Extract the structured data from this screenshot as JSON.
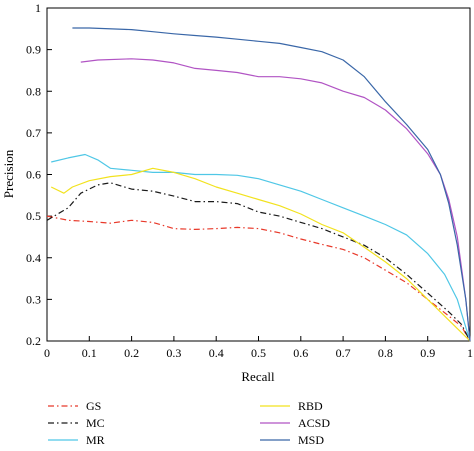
{
  "chart_data": {
    "type": "line",
    "title": "",
    "xlabel": "Recall",
    "ylabel": "Precision",
    "xlim": [
      0,
      1
    ],
    "ylim": [
      0.2,
      1
    ],
    "x_ticks": [
      "0",
      "0.1",
      "0.2",
      "0.3",
      "0.4",
      "0.5",
      "0.6",
      "0.7",
      "0.8",
      "0.9",
      "1"
    ],
    "y_ticks": [
      "0.2",
      "0.3",
      "0.4",
      "0.5",
      "0.6",
      "0.7",
      "0.8",
      "0.9",
      "1"
    ],
    "grid": false,
    "legend_position": "bottom",
    "series": [
      {
        "name": "GS",
        "color": "#e8392a",
        "dash": "dash-dot",
        "points": [
          [
            0.0,
            0.5
          ],
          [
            0.05,
            0.49
          ],
          [
            0.1,
            0.487
          ],
          [
            0.15,
            0.483
          ],
          [
            0.2,
            0.49
          ],
          [
            0.25,
            0.485
          ],
          [
            0.3,
            0.47
          ],
          [
            0.35,
            0.468
          ],
          [
            0.4,
            0.47
          ],
          [
            0.45,
            0.473
          ],
          [
            0.5,
            0.47
          ],
          [
            0.55,
            0.46
          ],
          [
            0.6,
            0.445
          ],
          [
            0.65,
            0.432
          ],
          [
            0.7,
            0.42
          ],
          [
            0.75,
            0.4
          ],
          [
            0.8,
            0.37
          ],
          [
            0.85,
            0.34
          ],
          [
            0.9,
            0.3
          ],
          [
            0.95,
            0.26
          ],
          [
            0.98,
            0.235
          ],
          [
            1.0,
            0.2
          ]
        ]
      },
      {
        "name": "MC",
        "color": "#1a1a1a",
        "dash": "dash-dot",
        "points": [
          [
            0.0,
            0.49
          ],
          [
            0.05,
            0.52
          ],
          [
            0.08,
            0.555
          ],
          [
            0.12,
            0.575
          ],
          [
            0.15,
            0.58
          ],
          [
            0.2,
            0.565
          ],
          [
            0.25,
            0.56
          ],
          [
            0.3,
            0.548
          ],
          [
            0.35,
            0.535
          ],
          [
            0.4,
            0.535
          ],
          [
            0.45,
            0.53
          ],
          [
            0.5,
            0.51
          ],
          [
            0.55,
            0.5
          ],
          [
            0.6,
            0.485
          ],
          [
            0.65,
            0.47
          ],
          [
            0.7,
            0.45
          ],
          [
            0.75,
            0.43
          ],
          [
            0.8,
            0.4
          ],
          [
            0.85,
            0.36
          ],
          [
            0.9,
            0.315
          ],
          [
            0.95,
            0.27
          ],
          [
            0.98,
            0.24
          ],
          [
            1.0,
            0.2
          ]
        ]
      },
      {
        "name": "MR",
        "color": "#4fc7e6",
        "dash": "solid",
        "points": [
          [
            0.01,
            0.63
          ],
          [
            0.05,
            0.64
          ],
          [
            0.09,
            0.648
          ],
          [
            0.12,
            0.635
          ],
          [
            0.15,
            0.615
          ],
          [
            0.2,
            0.61
          ],
          [
            0.25,
            0.605
          ],
          [
            0.3,
            0.605
          ],
          [
            0.35,
            0.6
          ],
          [
            0.4,
            0.6
          ],
          [
            0.45,
            0.598
          ],
          [
            0.5,
            0.59
          ],
          [
            0.55,
            0.575
          ],
          [
            0.6,
            0.56
          ],
          [
            0.65,
            0.54
          ],
          [
            0.7,
            0.52
          ],
          [
            0.75,
            0.5
          ],
          [
            0.8,
            0.48
          ],
          [
            0.85,
            0.455
          ],
          [
            0.9,
            0.41
          ],
          [
            0.94,
            0.36
          ],
          [
            0.97,
            0.3
          ],
          [
            1.0,
            0.2
          ]
        ]
      },
      {
        "name": "RBD",
        "color": "#f2e21e",
        "dash": "solid",
        "points": [
          [
            0.01,
            0.57
          ],
          [
            0.04,
            0.555
          ],
          [
            0.06,
            0.57
          ],
          [
            0.1,
            0.585
          ],
          [
            0.15,
            0.595
          ],
          [
            0.2,
            0.6
          ],
          [
            0.25,
            0.615
          ],
          [
            0.3,
            0.605
          ],
          [
            0.35,
            0.59
          ],
          [
            0.4,
            0.57
          ],
          [
            0.45,
            0.555
          ],
          [
            0.5,
            0.54
          ],
          [
            0.55,
            0.525
          ],
          [
            0.6,
            0.505
          ],
          [
            0.65,
            0.48
          ],
          [
            0.7,
            0.46
          ],
          [
            0.75,
            0.425
          ],
          [
            0.8,
            0.39
          ],
          [
            0.85,
            0.35
          ],
          [
            0.9,
            0.3
          ],
          [
            0.95,
            0.25
          ],
          [
            1.0,
            0.2
          ]
        ]
      },
      {
        "name": "ACSD",
        "color": "#b154c4",
        "dash": "solid",
        "points": [
          [
            0.08,
            0.87
          ],
          [
            0.12,
            0.875
          ],
          [
            0.2,
            0.878
          ],
          [
            0.25,
            0.875
          ],
          [
            0.3,
            0.868
          ],
          [
            0.35,
            0.855
          ],
          [
            0.4,
            0.85
          ],
          [
            0.45,
            0.845
          ],
          [
            0.5,
            0.835
          ],
          [
            0.55,
            0.835
          ],
          [
            0.6,
            0.83
          ],
          [
            0.65,
            0.82
          ],
          [
            0.7,
            0.8
          ],
          [
            0.75,
            0.785
          ],
          [
            0.8,
            0.755
          ],
          [
            0.85,
            0.71
          ],
          [
            0.9,
            0.65
          ],
          [
            0.93,
            0.6
          ],
          [
            0.95,
            0.54
          ],
          [
            0.97,
            0.45
          ],
          [
            0.99,
            0.3
          ],
          [
            1.0,
            0.2
          ]
        ]
      },
      {
        "name": "MSD",
        "color": "#3a67a8",
        "dash": "solid",
        "points": [
          [
            0.06,
            0.952
          ],
          [
            0.1,
            0.952
          ],
          [
            0.2,
            0.948
          ],
          [
            0.25,
            0.943
          ],
          [
            0.3,
            0.938
          ],
          [
            0.35,
            0.934
          ],
          [
            0.4,
            0.93
          ],
          [
            0.45,
            0.925
          ],
          [
            0.5,
            0.92
          ],
          [
            0.55,
            0.915
          ],
          [
            0.6,
            0.905
          ],
          [
            0.65,
            0.895
          ],
          [
            0.7,
            0.875
          ],
          [
            0.75,
            0.835
          ],
          [
            0.8,
            0.775
          ],
          [
            0.85,
            0.72
          ],
          [
            0.9,
            0.66
          ],
          [
            0.93,
            0.6
          ],
          [
            0.95,
            0.53
          ],
          [
            0.97,
            0.43
          ],
          [
            0.99,
            0.3
          ],
          [
            1.0,
            0.2
          ]
        ]
      }
    ]
  }
}
